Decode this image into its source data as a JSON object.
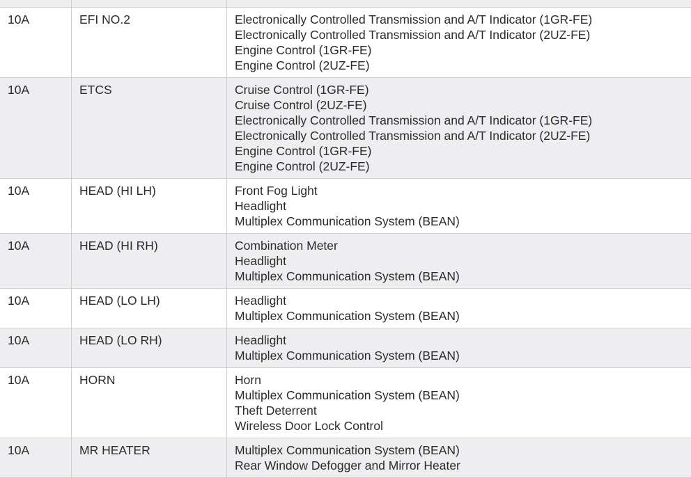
{
  "rows": [
    {
      "amp": "10A",
      "name": "EFI NO.2",
      "circuits": [
        "Electronically Controlled Transmission and A/T Indicator (1GR-FE)",
        "Electronically Controlled Transmission and A/T Indicator (2UZ-FE)",
        "Engine Control (1GR-FE)",
        "Engine Control (2UZ-FE)"
      ]
    },
    {
      "amp": "10A",
      "name": "ETCS",
      "circuits": [
        "Cruise Control (1GR-FE)",
        "Cruise Control (2UZ-FE)",
        "Electronically Controlled Transmission and A/T Indicator (1GR-FE)",
        "Electronically Controlled Transmission and A/T Indicator (2UZ-FE)",
        "Engine Control (1GR-FE)",
        "Engine Control (2UZ-FE)"
      ]
    },
    {
      "amp": "10A",
      "name": "HEAD (HI LH)",
      "circuits": [
        "Front Fog Light",
        "Headlight",
        "Multiplex Communication System (BEAN)"
      ]
    },
    {
      "amp": "10A",
      "name": "HEAD (HI RH)",
      "circuits": [
        "Combination Meter",
        "Headlight",
        "Multiplex Communication System (BEAN)"
      ]
    },
    {
      "amp": "10A",
      "name": "HEAD (LO LH)",
      "circuits": [
        "Headlight",
        "Multiplex Communication System (BEAN)"
      ]
    },
    {
      "amp": "10A",
      "name": "HEAD (LO RH)",
      "circuits": [
        "Headlight",
        "Multiplex Communication System (BEAN)"
      ]
    },
    {
      "amp": "10A",
      "name": "HORN",
      "circuits": [
        "Horn",
        "Multiplex Communication System (BEAN)",
        "Theft Deterrent",
        "Wireless Door Lock Control"
      ]
    },
    {
      "amp": "10A",
      "name": "MR HEATER",
      "circuits": [
        "Multiplex Communication System (BEAN)",
        "Rear Window Defogger and Mirror Heater"
      ]
    }
  ]
}
